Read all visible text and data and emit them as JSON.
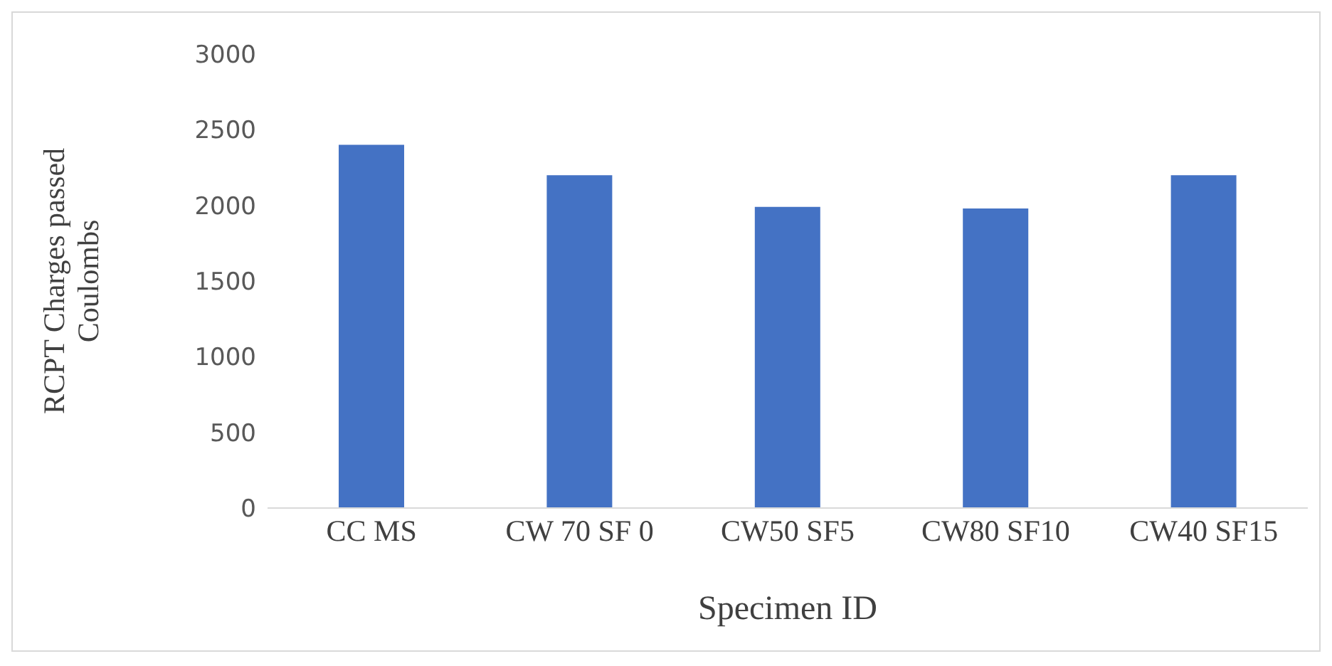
{
  "chart_data": {
    "type": "bar",
    "xlabel": "Specimen ID",
    "ylabel": "RCPT Charges passed Coulombs",
    "categories": [
      "CC MS",
      "CW 70 SF 0",
      "CW50 SF5",
      "CW80 SF10",
      "CW40 SF15"
    ],
    "values": [
      2400,
      2200,
      1990,
      1980,
      2200
    ],
    "color": "#4472c4",
    "ylim": [
      0,
      3000
    ],
    "yticks": [
      0,
      500,
      1000,
      1500,
      2000,
      2500,
      3000
    ],
    "grid": false,
    "legend": false
  }
}
